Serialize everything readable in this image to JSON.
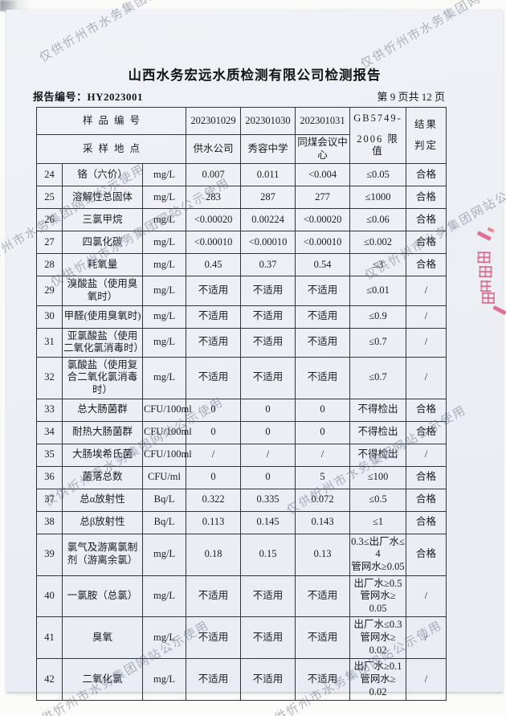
{
  "watermark": {
    "text": "仅供忻州市水务集团网站公示使用"
  },
  "header": {
    "title": "山西水务宏远水质检测有限公司检测报告",
    "report_no": "报告编号：HY2023001",
    "page_info": "第 9 页共 12 页"
  },
  "table": {
    "header": {
      "sample_id_label": "样品编号",
      "sample_ids": [
        "202301029",
        "202301030",
        "202301031"
      ],
      "location_label": "采样地点",
      "locations": [
        "供水公司",
        "秀容中学",
        "同煤会议中心"
      ],
      "standard_lines": [
        "GB5749-",
        "2006 限值"
      ],
      "result_lines": [
        "结果",
        "判定"
      ]
    },
    "rows": [
      {
        "no": "24",
        "name": "铬（六价）",
        "unit": "mg/L",
        "values": [
          "0.007",
          "0.011",
          "<0.004"
        ],
        "limit": "≤0.05",
        "result": "合格"
      },
      {
        "no": "25",
        "name": "溶解性总固体",
        "unit": "mg/L",
        "values": [
          "283",
          "287",
          "277"
        ],
        "limit": "≤1000",
        "result": "合格"
      },
      {
        "no": "26",
        "name": "三氯甲烷",
        "unit": "mg/L",
        "values": [
          "<0.00020",
          "0.00224",
          "<0.00020"
        ],
        "limit": "≤0.06",
        "result": "合格"
      },
      {
        "no": "27",
        "name": "四氯化碳",
        "unit": "mg/L",
        "values": [
          "<0.00010",
          "<0.00010",
          "<0.00010"
        ],
        "limit": "≤0.002",
        "result": "合格"
      },
      {
        "no": "28",
        "name": "耗氧量",
        "unit": "mg/L",
        "values": [
          "0.45",
          "0.37",
          "0.54"
        ],
        "limit": "≤3",
        "result": "合格"
      },
      {
        "no": "29",
        "name": "溴酸盐（使用臭氧时）",
        "unit": "mg/L",
        "values": [
          "不适用",
          "不适用",
          "不适用"
        ],
        "limit": "≤0.01",
        "result": "/"
      },
      {
        "no": "30",
        "name": "甲醛(使用臭氧时)",
        "unit": "mg/L",
        "values": [
          "不适用",
          "不适用",
          "不适用"
        ],
        "limit": "≤0.9",
        "result": "/"
      },
      {
        "no": "31",
        "name": "亚氯酸盐（使用二氧化氯消毒时）",
        "unit": "mg/L",
        "values": [
          "不适用",
          "不适用",
          "不适用"
        ],
        "limit": "≤0.7",
        "result": "/"
      },
      {
        "no": "32",
        "name": "氯酸盐（使用复合二氧化氯消毒时）",
        "unit": "mg/L",
        "values": [
          "不适用",
          "不适用",
          "不适用"
        ],
        "limit": "≤0.7",
        "result": "/"
      },
      {
        "no": "33",
        "name": "总大肠菌群",
        "unit": "CFU/100ml",
        "values": [
          "0",
          "0",
          "0"
        ],
        "limit": "不得检出",
        "result": "合格"
      },
      {
        "no": "34",
        "name": "耐热大肠菌群",
        "unit": "CFU/100ml",
        "values": [
          "0",
          "0",
          "0"
        ],
        "limit": "不得检出",
        "result": "合格"
      },
      {
        "no": "35",
        "name": "大肠埃希氏菌",
        "unit": "CFU/100ml",
        "values": [
          "/",
          "/",
          "/"
        ],
        "limit": "不得检出",
        "result": "/"
      },
      {
        "no": "36",
        "name": "菌落总数",
        "unit": "CFU/ml",
        "values": [
          "0",
          "0",
          "5"
        ],
        "limit": "≤100",
        "result": "合格"
      },
      {
        "no": "37",
        "name": "总α放射性",
        "unit": "Bq/L",
        "values": [
          "0.322",
          "0.335",
          "0.072"
        ],
        "limit": "≤0.5",
        "result": "合格"
      },
      {
        "no": "38",
        "name": "总β放射性",
        "unit": "Bq/L",
        "values": [
          "0.113",
          "0.145",
          "0.143"
        ],
        "limit": "≤1",
        "result": "合格"
      },
      {
        "no": "39",
        "name": "氯气及游离氯制剂（游离余氯）",
        "unit": "mg/L",
        "values": [
          "0.18",
          "0.15",
          "0.13"
        ],
        "limit": "0.3≤出厂水≤\n4\n管网水≥0.05",
        "result": "合格"
      },
      {
        "no": "40",
        "name": "一氯胺（总氯）",
        "unit": "mg/L",
        "values": [
          "不适用",
          "不适用",
          "不适用"
        ],
        "limit": "出厂水≥0.5\n管网水≥\n0.05",
        "result": "/"
      },
      {
        "no": "41",
        "name": "臭氧",
        "unit": "mg/L",
        "values": [
          "不适用",
          "不适用",
          "不适用"
        ],
        "limit": "出厂水≤0.3\n管网水≥\n0.02",
        "result": "/"
      },
      {
        "no": "42",
        "name": "二氧化氯",
        "unit": "mg/L",
        "values": [
          "不适用",
          "不适用",
          "不适用"
        ],
        "limit": "出厂水≥0.1\n管网水≥\n0.02",
        "result": "/"
      }
    ]
  }
}
